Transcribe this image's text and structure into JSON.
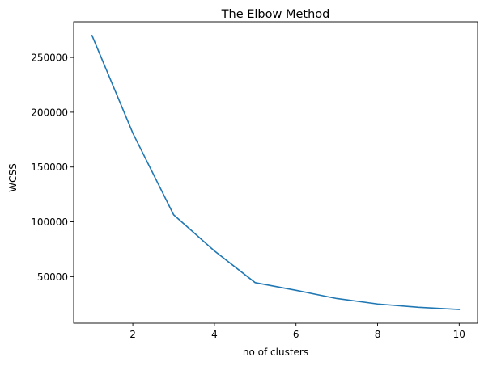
{
  "chart_data": {
    "type": "line",
    "title": "The Elbow Method",
    "xlabel": "no of clusters",
    "ylabel": "WCSS",
    "x": [
      1,
      2,
      3,
      4,
      5,
      6,
      7,
      8,
      9,
      10
    ],
    "series": [
      {
        "values": [
          270000,
          181000,
          106500,
          73500,
          44500,
          37500,
          30000,
          25000,
          22000,
          20000
        ],
        "color": "#1f77b4"
      }
    ],
    "xticks": [
      2,
      4,
      6,
      8,
      10
    ],
    "yticks": [
      50000,
      100000,
      150000,
      200000,
      250000
    ],
    "xlim": [
      0.55,
      10.45
    ],
    "ylim": [
      7500,
      282500
    ],
    "grid": false,
    "legend": "none"
  }
}
